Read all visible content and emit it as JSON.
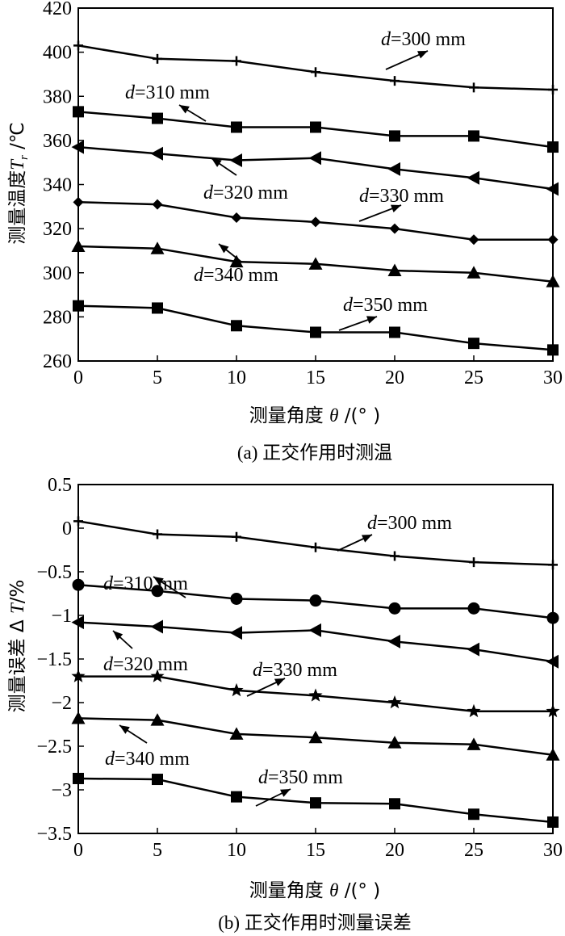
{
  "chart_data": [
    {
      "type": "line",
      "panel": "a",
      "caption": "(a) 正交作用时测温",
      "xlabel": "测量角度 θ /(° )",
      "ylabel": "测量温度 T_r /℃",
      "xlim": [
        0,
        30
      ],
      "ylim": [
        260,
        420
      ],
      "xticks": [
        "0",
        "5",
        "10",
        "15",
        "20",
        "25",
        "30"
      ],
      "yticks": [
        "260",
        "280",
        "300",
        "320",
        "340",
        "360",
        "380",
        "400",
        "420"
      ],
      "x": [
        0,
        5,
        10,
        15,
        20,
        25,
        30
      ],
      "grid": false,
      "series": [
        {
          "name": "d=300 mm",
          "marker": "plus",
          "values": [
            403,
            397,
            396,
            391,
            387,
            384,
            383
          ],
          "label_prefix": "d",
          "label_suffix": "=300 mm"
        },
        {
          "name": "d=310 mm",
          "marker": "square",
          "values": [
            373,
            370,
            366,
            366,
            362,
            362,
            357
          ],
          "label_prefix": "d",
          "label_suffix": "=310 mm"
        },
        {
          "name": "d=320 mm",
          "marker": "triangle-left",
          "values": [
            357,
            354,
            351,
            352,
            347,
            343,
            338
          ],
          "label_prefix": "d",
          "label_suffix": "=320 mm"
        },
        {
          "name": "d=330 mm",
          "marker": "diamond",
          "values": [
            332,
            331,
            325,
            323,
            320,
            315,
            315
          ],
          "label_prefix": "d",
          "label_suffix": "=330 mm"
        },
        {
          "name": "d=340 mm",
          "marker": "triangle-up",
          "values": [
            312,
            311,
            305,
            304,
            301,
            300,
            296
          ],
          "label_prefix": "d",
          "label_suffix": "=340 mm"
        },
        {
          "name": "d=350 mm",
          "marker": "square",
          "values": [
            285,
            284,
            276,
            273,
            273,
            268,
            265
          ],
          "label_prefix": "d",
          "label_suffix": "=350 mm"
        }
      ]
    },
    {
      "type": "line",
      "panel": "b",
      "caption": "(b) 正交作用时测量误差",
      "xlabel": "测量角度 θ /(° )",
      "ylabel": "测量误差 Δ T/%",
      "xlim": [
        0,
        30
      ],
      "ylim": [
        -3.5,
        0.5
      ],
      "xticks": [
        "0",
        "5",
        "10",
        "15",
        "20",
        "25",
        "30"
      ],
      "yticks": [
        "0.5",
        "0",
        "-0.5",
        "-1",
        "-1.5",
        "-2",
        "-2.5",
        "-3",
        "-3.5"
      ],
      "x": [
        0,
        5,
        10,
        15,
        20,
        25,
        30
      ],
      "grid": false,
      "series": [
        {
          "name": "d=300 mm",
          "marker": "plus",
          "values": [
            0.08,
            -0.07,
            -0.1,
            -0.22,
            -0.32,
            -0.39,
            -0.42
          ],
          "label_prefix": "d",
          "label_suffix": "=300 mm"
        },
        {
          "name": "d=310 mm",
          "marker": "circle",
          "values": [
            -0.65,
            -0.72,
            -0.81,
            -0.83,
            -0.92,
            -0.92,
            -1.03
          ],
          "label_prefix": "d",
          "label_suffix": "=310 mm"
        },
        {
          "name": "d=320 mm",
          "marker": "triangle-left",
          "values": [
            -1.08,
            -1.13,
            -1.2,
            -1.17,
            -1.3,
            -1.39,
            -1.53
          ],
          "label_prefix": "d",
          "label_suffix": "=320 mm"
        },
        {
          "name": "d=330 mm",
          "marker": "star",
          "values": [
            -1.7,
            -1.7,
            -1.86,
            -1.92,
            -2.0,
            -2.1,
            -2.1
          ],
          "label_prefix": "d",
          "label_suffix": "=330 mm"
        },
        {
          "name": "d=340 mm",
          "marker": "triangle-up",
          "values": [
            -2.18,
            -2.2,
            -2.36,
            -2.4,
            -2.46,
            -2.48,
            -2.6
          ],
          "label_prefix": "d",
          "label_suffix": "=340 mm"
        },
        {
          "name": "d=350 mm",
          "marker": "square",
          "values": [
            -2.87,
            -2.88,
            -3.08,
            -3.15,
            -3.16,
            -3.28,
            -3.37
          ],
          "label_prefix": "d",
          "label_suffix": "=350 mm"
        }
      ]
    }
  ]
}
